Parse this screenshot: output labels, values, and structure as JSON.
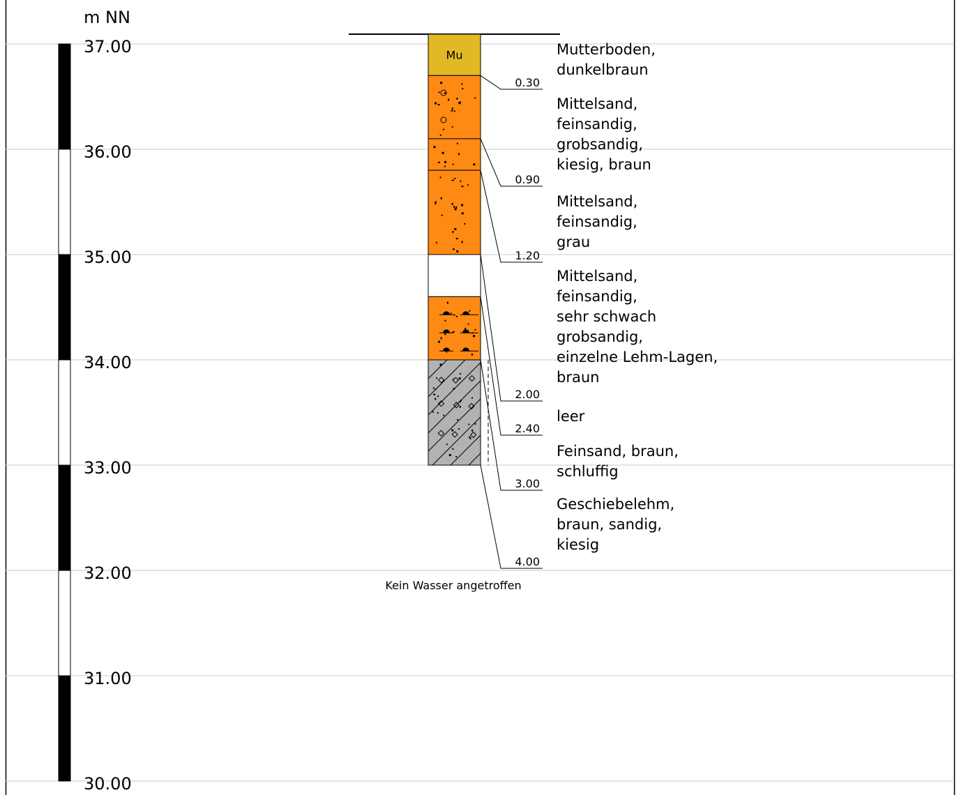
{
  "axis": {
    "unit_label": "m NN",
    "top": 37.0,
    "bottom": 30.0,
    "tick_labels": [
      "37.00",
      "36.00",
      "35.00",
      "34.00",
      "33.00",
      "32.00",
      "31.00",
      "30.00"
    ]
  },
  "borehole": {
    "ground_elevation": 37.0,
    "final_depth": 4.0,
    "note": "Kein Wasser angetroffen"
  },
  "layers": [
    {
      "name": "mutterboden",
      "from": 0.0,
      "to": 0.3,
      "depth_label": "0.30",
      "symbol": "Mu",
      "description": [
        "Mutterboden,",
        "dunkelbraun"
      ],
      "color": "#E0B925",
      "pattern": "none"
    },
    {
      "name": "mittelsand-braun-kiesig",
      "from": 0.3,
      "to": 0.9,
      "depth_label": "0.90",
      "symbol": "",
      "description": [
        "Mittelsand,",
        "feinsandig,",
        "grobsandig,",
        "kiesig, braun"
      ],
      "color": "#FF8A13",
      "pattern": "sand-gravel"
    },
    {
      "name": "mittelsand-grau",
      "from": 0.9,
      "to": 1.2,
      "depth_label": "1.20",
      "symbol": "",
      "description": [
        "Mittelsand,",
        "feinsandig,",
        "grau"
      ],
      "color": "#FF8A13",
      "pattern": "sand"
    },
    {
      "name": "mittelsand-lehm-lagen",
      "from": 1.2,
      "to": 2.0,
      "depth_label": "2.00",
      "symbol": "",
      "description": [
        "Mittelsand,",
        "feinsandig,",
        "sehr schwach",
        "grobsandig,",
        "einzelne Lehm-Lagen,",
        "braun"
      ],
      "color": "#FF8A13",
      "pattern": "sand"
    },
    {
      "name": "leer",
      "from": 2.0,
      "to": 2.4,
      "depth_label": "2.40",
      "symbol": "",
      "description": [
        "leer"
      ],
      "color": "#FFFFFF",
      "pattern": "none"
    },
    {
      "name": "feinsand-schluffig",
      "from": 2.4,
      "to": 3.0,
      "depth_label": "3.00",
      "symbol": "",
      "description": [
        "Feinsand, braun,",
        "schluffig"
      ],
      "color": "#FF8A13",
      "pattern": "silt"
    },
    {
      "name": "geschiebelehm",
      "from": 3.0,
      "to": 4.0,
      "depth_label": "4.00",
      "symbol": "",
      "description": [
        "Geschiebelehm,",
        "braun, sandig,",
        "kiesig"
      ],
      "color": "#B2B2B2",
      "pattern": "till"
    }
  ]
}
